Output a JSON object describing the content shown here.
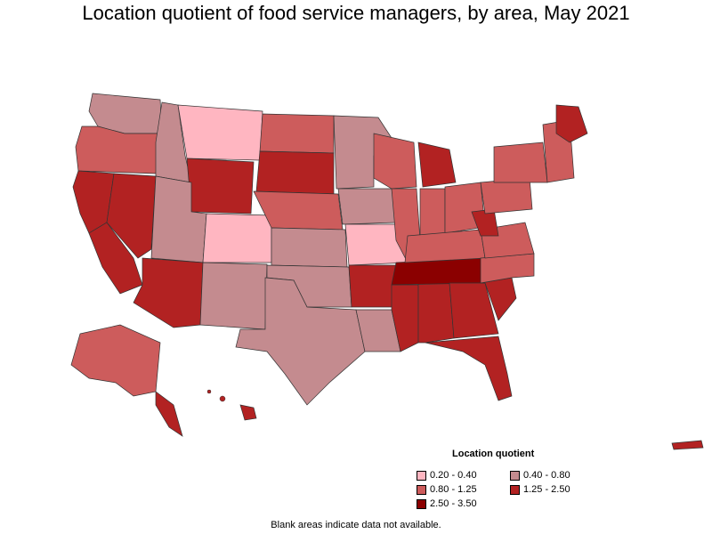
{
  "title": "Location quotient of food service managers, by area, May 2021",
  "legend": {
    "title": "Location quotient",
    "items": [
      {
        "label": "0.20 - 0.40",
        "color": "#ffb6c1"
      },
      {
        "label": "0.40 - 0.80",
        "color": "#c48b8f"
      },
      {
        "label": "0.80 - 1.25",
        "color": "#cd5c5c"
      },
      {
        "label": "1.25 - 2.50",
        "color": "#b22222"
      },
      {
        "label": "2.50 - 3.50",
        "color": "#8b0000"
      }
    ]
  },
  "footnote": "Blank areas indicate data not available.",
  "colors": {
    "very_low": "#ffb6c1",
    "low": "#c48b8f",
    "mid": "#cd5c5c",
    "high": "#b22222",
    "very_high": "#8b0000",
    "outline": "#000000"
  }
}
